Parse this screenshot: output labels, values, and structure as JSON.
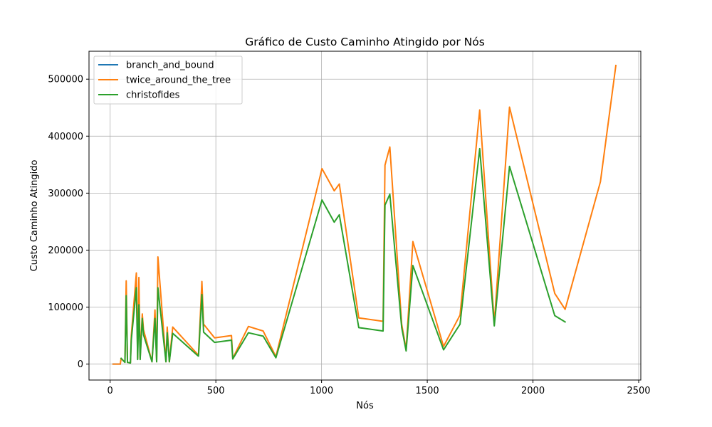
{
  "chart_data": {
    "type": "line",
    "title": "Gráfico de Custo Caminho Atingido por Nós",
    "xlabel": "Nós",
    "ylabel": "Custo Caminho Atingido",
    "xlim": [
      -100,
      2510
    ],
    "ylim": [
      -28000,
      549000
    ],
    "xticks": [
      0,
      500,
      1000,
      1500,
      2000,
      2500
    ],
    "yticks": [
      0,
      100000,
      200000,
      300000,
      400000,
      500000
    ],
    "grid": true,
    "legend_position": "top-left",
    "series": [
      {
        "name": "branch_and_bound",
        "color": "#1f77b4",
        "x": [
          14,
          48
        ],
        "y": [
          0,
          0
        ]
      },
      {
        "name": "twice_around_the_tree",
        "color": "#ff7f0e",
        "x": [
          14,
          48,
          52,
          70,
          76,
          82,
          96,
          100,
          124,
          130,
          136,
          142,
          152,
          158,
          198,
          212,
          220,
          226,
          264,
          270,
          280,
          296,
          414,
          418,
          434,
          442,
          494,
          574,
          580,
          654,
          724,
          784,
          1002,
          1060,
          1084,
          1176,
          1291,
          1300,
          1323,
          1379,
          1400,
          1432,
          1577,
          1655,
          1748,
          1817,
          1889,
          2103,
          2152,
          2319,
          2392
        ],
        "y": [
          0,
          0,
          10000,
          3000,
          146000,
          3000,
          2000,
          50000,
          160000,
          10000,
          152000,
          10000,
          88000,
          60000,
          4000,
          95000,
          4000,
          188000,
          4000,
          65000,
          4000,
          65000,
          17000,
          17000,
          145000,
          70000,
          46000,
          50000,
          10000,
          66000,
          58000,
          13000,
          343000,
          304000,
          316000,
          81000,
          75000,
          349000,
          381000,
          70000,
          26000,
          215000,
          31000,
          86000,
          446000,
          72000,
          451000,
          124000,
          96000,
          320000,
          524000
        ]
      },
      {
        "name": "christofides",
        "color": "#2ca02c",
        "x": [
          52,
          70,
          76,
          82,
          96,
          100,
          124,
          130,
          136,
          142,
          152,
          158,
          198,
          212,
          220,
          226,
          264,
          270,
          280,
          296,
          414,
          418,
          434,
          442,
          494,
          574,
          580,
          654,
          724,
          784,
          1002,
          1060,
          1084,
          1176,
          1291,
          1300,
          1323,
          1379,
          1400,
          1432,
          1577,
          1655,
          1748,
          1817,
          1889,
          2103,
          2152
        ],
        "y": [
          10000,
          3000,
          120000,
          3000,
          2000,
          42000,
          134000,
          8000,
          104000,
          8000,
          80000,
          51000,
          4000,
          80000,
          4000,
          134000,
          4000,
          55000,
          4000,
          54000,
          15000,
          14000,
          122000,
          56000,
          38000,
          42000,
          9000,
          55000,
          49000,
          11000,
          288000,
          249000,
          262000,
          64000,
          58000,
          279000,
          298000,
          64000,
          23000,
          173000,
          25000,
          70000,
          378000,
          67000,
          347000,
          85000,
          74000
        ]
      }
    ]
  }
}
